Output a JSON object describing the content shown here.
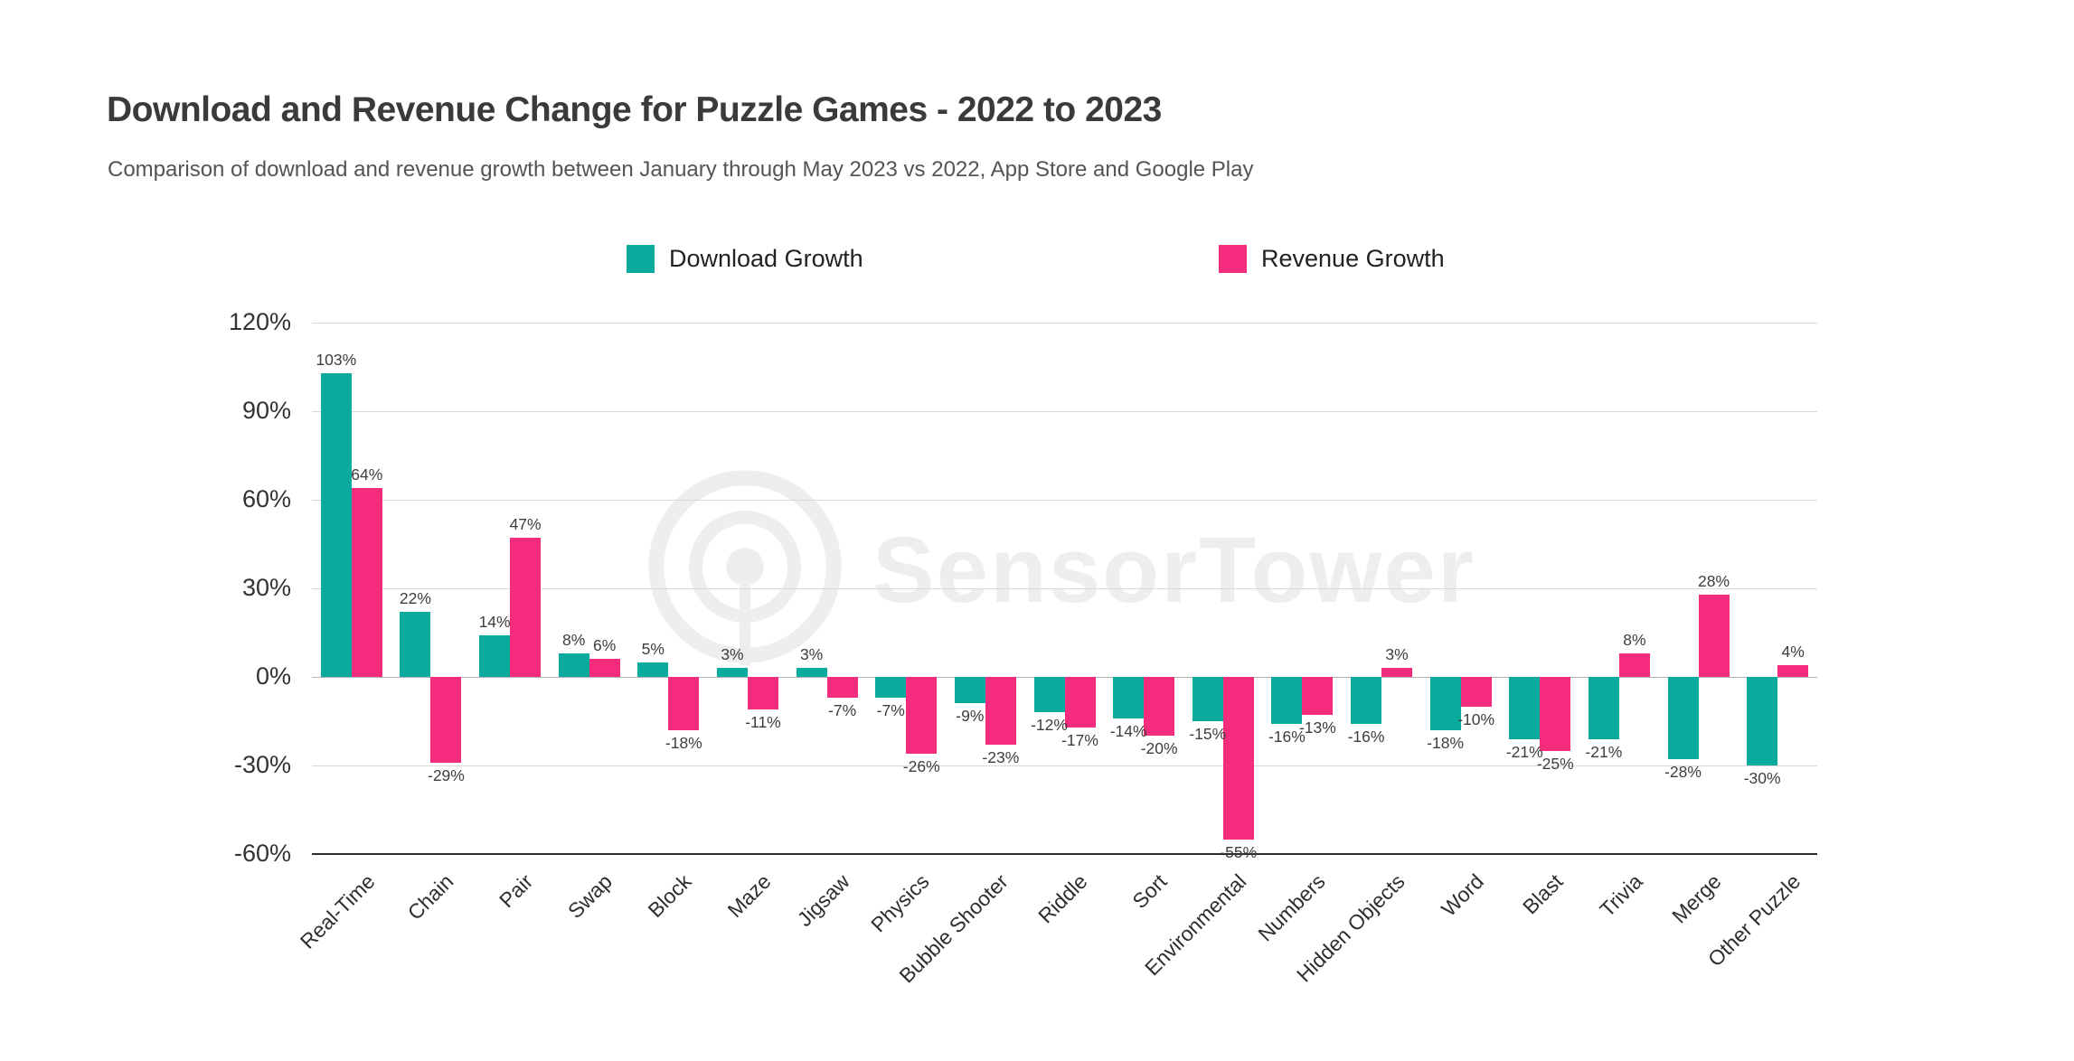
{
  "chart_data": {
    "type": "bar",
    "title": "Download and Revenue Change for Puzzle Games - 2022 to 2023",
    "subtitle": "Comparison of download and revenue growth between January through May 2023 vs 2022, App Store and Google Play",
    "watermark": "SensorTower",
    "categories": [
      "Real-Time",
      "Chain",
      "Pair",
      "Swap",
      "Block",
      "Maze",
      "Jigsaw",
      "Physics",
      "Bubble Shooter",
      "Riddle",
      "Sort",
      "Environmental",
      "Numbers",
      "Hidden Objects",
      "Word",
      "Blast",
      "Trivia",
      "Merge",
      "Other Puzzle"
    ],
    "series": [
      {
        "name": "Download Growth",
        "color": "#09ab9e",
        "values": [
          103,
          22,
          14,
          8,
          5,
          3,
          3,
          -7,
          -9,
          -12,
          -14,
          -15,
          -16,
          -16,
          -18,
          -21,
          -21,
          -28,
          -30
        ]
      },
      {
        "name": "Revenue Growth",
        "color": "#f52c7e",
        "values": [
          64,
          -29,
          47,
          6,
          -18,
          -11,
          -7,
          -26,
          -23,
          -17,
          -20,
          -55,
          -13,
          3,
          -10,
          -25,
          8,
          28,
          4
        ]
      }
    ],
    "y_ticks": [
      {
        "value": 120,
        "label": "120%"
      },
      {
        "value": 90,
        "label": "90%"
      },
      {
        "value": 60,
        "label": "60%"
      },
      {
        "value": 30,
        "label": "30%"
      },
      {
        "value": 0,
        "label": "0%"
      },
      {
        "value": -30,
        "label": "-30%"
      },
      {
        "value": -60,
        "label": "-60%"
      }
    ],
    "ylim": [
      -60,
      120
    ],
    "value_suffix": "%",
    "grid": true,
    "legend_position": "top",
    "xlabel": "",
    "ylabel": ""
  }
}
